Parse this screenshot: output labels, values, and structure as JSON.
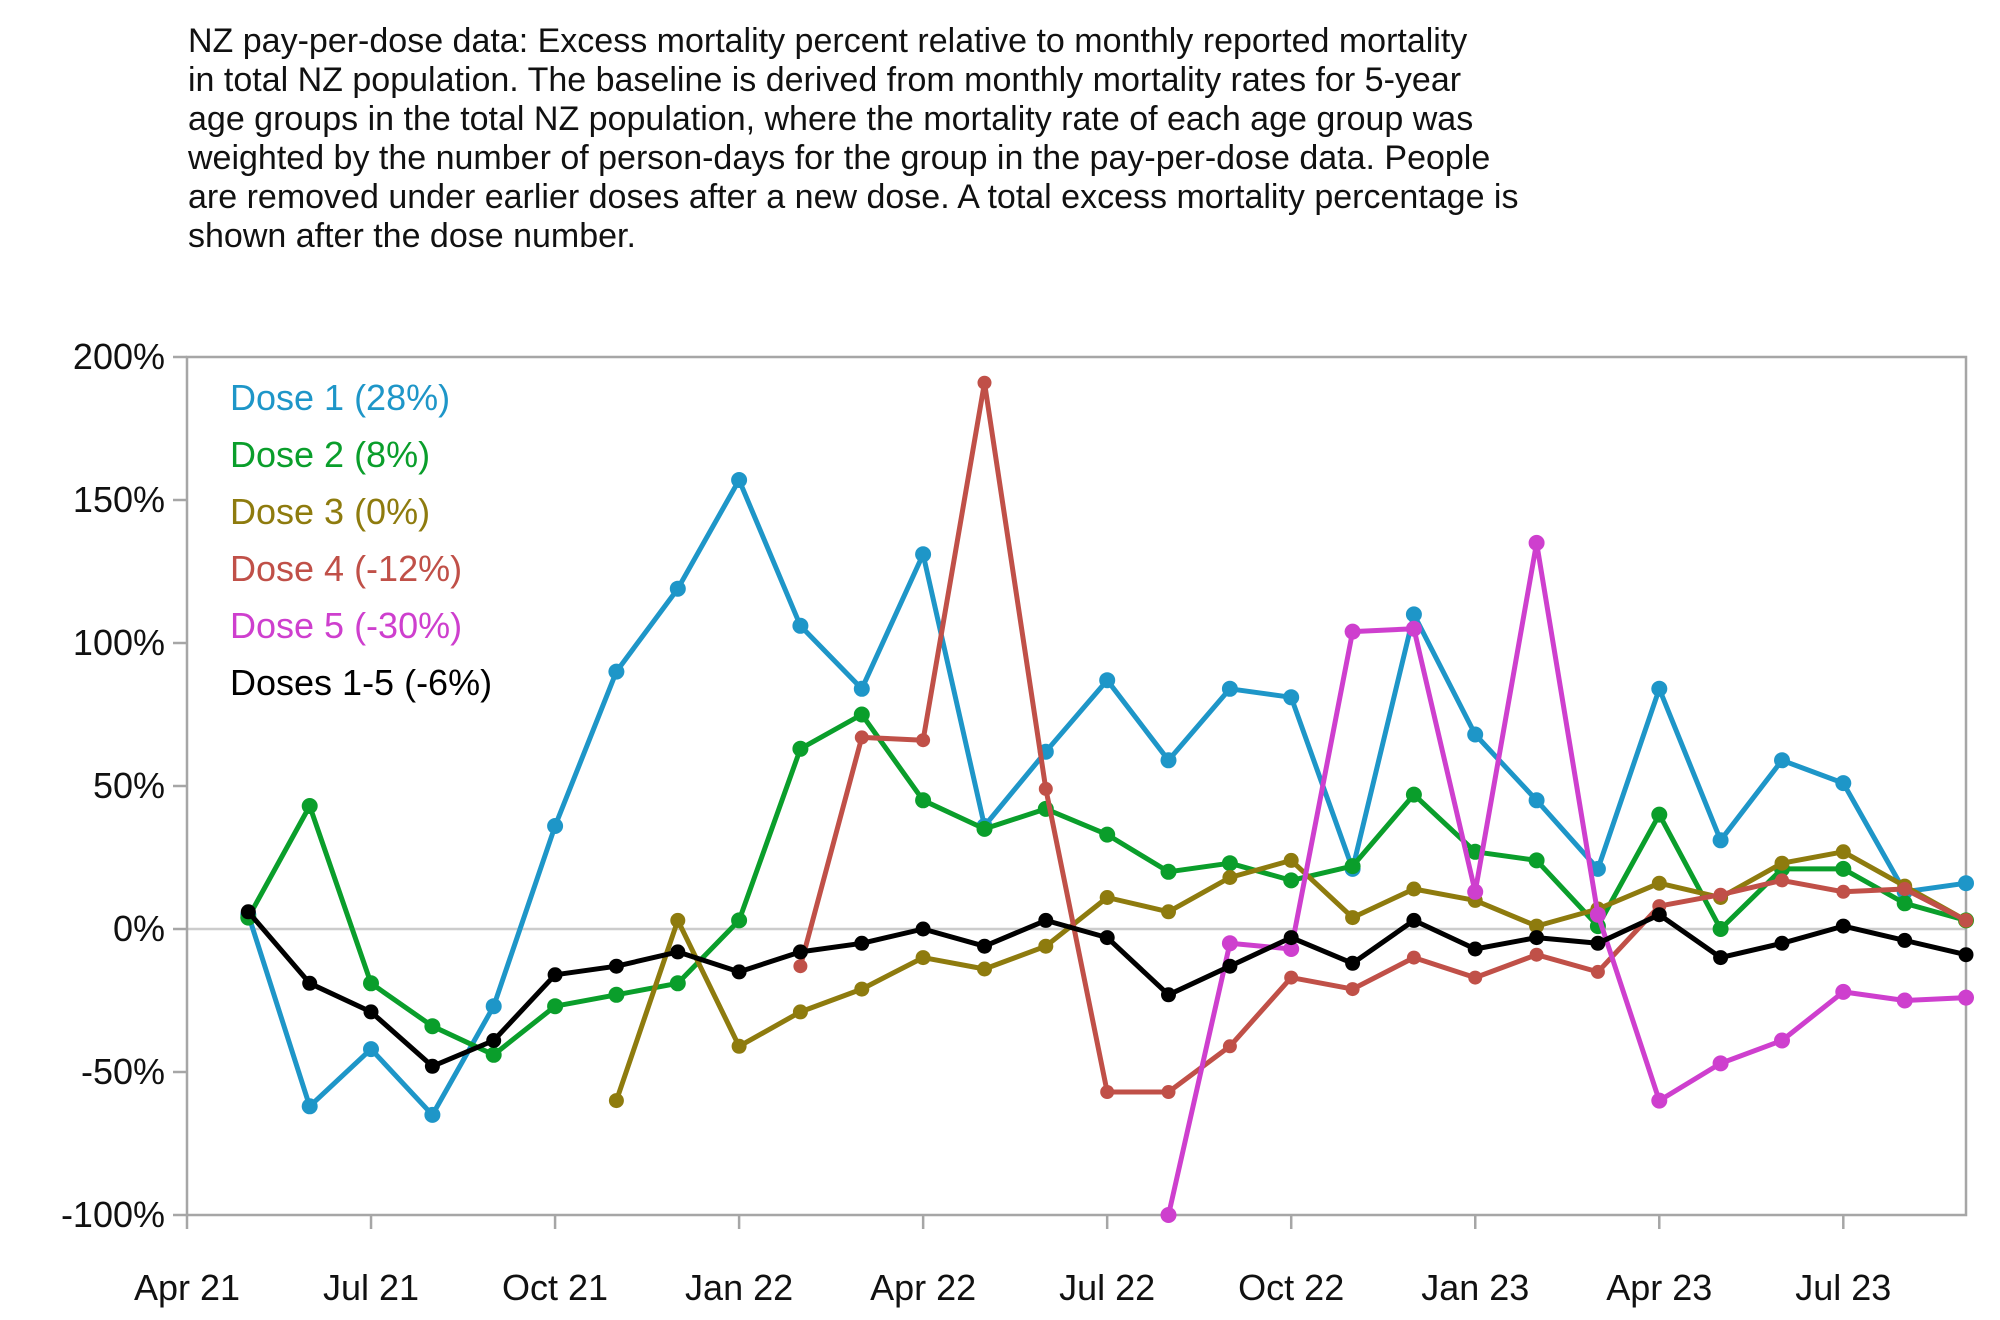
{
  "title": {
    "lines": [
      "NZ pay-per-dose data: Excess mortality percent relative to monthly reported mortality",
      "in total NZ population. The baseline is derived from monthly mortality rates for 5-year",
      "age groups in the total NZ population, where the mortality rate of each age group was",
      "weighted by the number of person-days for the group in the pay-per-dose data. People",
      "are removed under earlier doses after a new dose. A total excess mortality percentage is",
      "shown after the dose number."
    ]
  },
  "chart_data": {
    "type": "line",
    "title": "NZ pay-per-dose excess mortality percent by dose",
    "x_axis": {
      "unit": "month",
      "range_start_month": "2021-04",
      "range_end_month": "2023-09",
      "ticks": [
        {
          "label": "Apr 21",
          "month": "2021-04"
        },
        {
          "label": "Jul 21",
          "month": "2021-07"
        },
        {
          "label": "Oct 21",
          "month": "2021-10"
        },
        {
          "label": "Jan 22",
          "month": "2022-01"
        },
        {
          "label": "Apr 22",
          "month": "2022-04"
        },
        {
          "label": "Jul 22",
          "month": "2022-07"
        },
        {
          "label": "Oct 22",
          "month": "2022-10"
        },
        {
          "label": "Jan 23",
          "month": "2023-01"
        },
        {
          "label": "Apr 23",
          "month": "2023-04"
        },
        {
          "label": "Jul 23",
          "month": "2023-07"
        }
      ]
    },
    "y_axis": {
      "unit": "%",
      "min": -100,
      "max": 200,
      "ticks": [
        {
          "label": "200%",
          "value": 200
        },
        {
          "label": "150%",
          "value": 150
        },
        {
          "label": "100%",
          "value": 100
        },
        {
          "label": "50%",
          "value": 50
        },
        {
          "label": "0%",
          "value": 0
        },
        {
          "label": "-50%",
          "value": -50
        },
        {
          "label": "-100%",
          "value": -100
        }
      ],
      "gridline_values": [
        0
      ]
    },
    "legend": {
      "position": "top-left-inside",
      "entries": [
        {
          "label": "Dose 1 (28%)",
          "color": "#1e96c8"
        },
        {
          "label": "Dose 2 (8%)",
          "color": "#0a9e2b"
        },
        {
          "label": "Dose 3 (0%)",
          "color": "#8e7b0e"
        },
        {
          "label": "Dose 4 (-12%)",
          "color": "#c05048"
        },
        {
          "label": "Dose 5 (-30%)",
          "color": "#ce3fce"
        },
        {
          "label": "Doses 1-5 (-6%)",
          "color": "#000000"
        }
      ]
    },
    "series": [
      {
        "name": "Dose 1",
        "total_excess_label": "28%",
        "color": "#1e96c8",
        "dot_radius": 8,
        "start_month": "2021-05",
        "values": [
          5,
          -62,
          -42,
          -65,
          -27,
          36,
          90,
          119,
          157,
          106,
          84,
          131,
          36,
          62,
          87,
          59,
          84,
          81,
          21,
          110,
          68,
          45,
          21,
          84,
          31,
          59,
          51,
          13,
          16
        ]
      },
      {
        "name": "Dose 2",
        "total_excess_label": "8%",
        "color": "#0a9e2b",
        "dot_radius": 8,
        "start_month": "2021-05",
        "values": [
          4,
          43,
          -19,
          -34,
          -44,
          -27,
          -23,
          -19,
          3,
          63,
          75,
          45,
          35,
          42,
          33,
          20,
          23,
          17,
          22,
          47,
          27,
          24,
          1,
          40,
          0,
          21,
          21,
          9,
          3
        ]
      },
      {
        "name": "Dose 3",
        "total_excess_label": "0%",
        "color": "#8e7b0e",
        "dot_radius": 7.5,
        "start_month": "2021-11",
        "values": [
          -60,
          3,
          -41,
          -29,
          -21,
          -10,
          -14,
          -6,
          11,
          6,
          18,
          24,
          4,
          14,
          10,
          1,
          7,
          16,
          11,
          23,
          27,
          15,
          3
        ]
      },
      {
        "name": "Dose 4",
        "total_excess_label": "-12%",
        "color": "#c05048",
        "dot_radius": 7,
        "start_month": "2022-02",
        "values": [
          -13,
          67,
          66,
          191,
          49,
          -57,
          -57,
          -41,
          -17,
          -21,
          -10,
          -17,
          -9,
          -15,
          8,
          12,
          17,
          13,
          14,
          3
        ]
      },
      {
        "name": "Dose 5",
        "total_excess_label": "-30%",
        "color": "#ce3fce",
        "dot_radius": 8,
        "start_month": "2022-08",
        "values": [
          -100,
          -5,
          -7,
          104,
          105,
          13,
          135,
          5,
          -60,
          -47,
          -39,
          -22,
          -25,
          -24
        ]
      },
      {
        "name": "Doses 1-5",
        "total_excess_label": "-6%",
        "color": "#000000",
        "dot_radius": 7.5,
        "start_month": "2021-05",
        "values": [
          6,
          -19,
          -29,
          -48,
          -39,
          -16,
          -13,
          -8,
          -15,
          -8,
          -5,
          0,
          -6,
          3,
          -3,
          -23,
          -13,
          -3,
          -12,
          3,
          -7,
          -3,
          -5,
          5,
          -10,
          -5,
          1,
          -4,
          -9
        ]
      }
    ]
  }
}
